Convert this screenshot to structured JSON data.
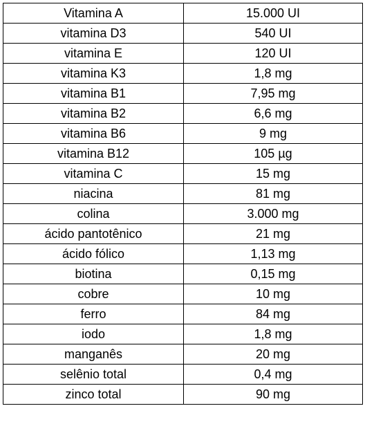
{
  "table": {
    "rows": [
      [
        "Vitamina A",
        "15.000 UI"
      ],
      [
        "vitamina D3",
        "540 UI"
      ],
      [
        "vitamina E",
        "120 UI"
      ],
      [
        "vitamina K3",
        "1,8 mg"
      ],
      [
        "vitamina B1",
        "7,95 mg"
      ],
      [
        "vitamina B2",
        "6,6 mg"
      ],
      [
        "vitamina B6",
        "9 mg"
      ],
      [
        "vitamina B12",
        "105 µg"
      ],
      [
        "vitamina C",
        "15 mg"
      ],
      [
        "niacina",
        "81 mg"
      ],
      [
        "colina",
        "3.000 mg"
      ],
      [
        "ácido pantotênico",
        "21 mg"
      ],
      [
        "ácido fólico",
        "1,13 mg"
      ],
      [
        "biotina",
        "0,15 mg"
      ],
      [
        "cobre",
        "10 mg"
      ],
      [
        "ferro",
        "84 mg"
      ],
      [
        "iodo",
        "1,8 mg"
      ],
      [
        "manganês",
        "20 mg"
      ],
      [
        "selênio total",
        "0,4 mg"
      ],
      [
        "zinco total",
        "90 mg"
      ]
    ]
  }
}
